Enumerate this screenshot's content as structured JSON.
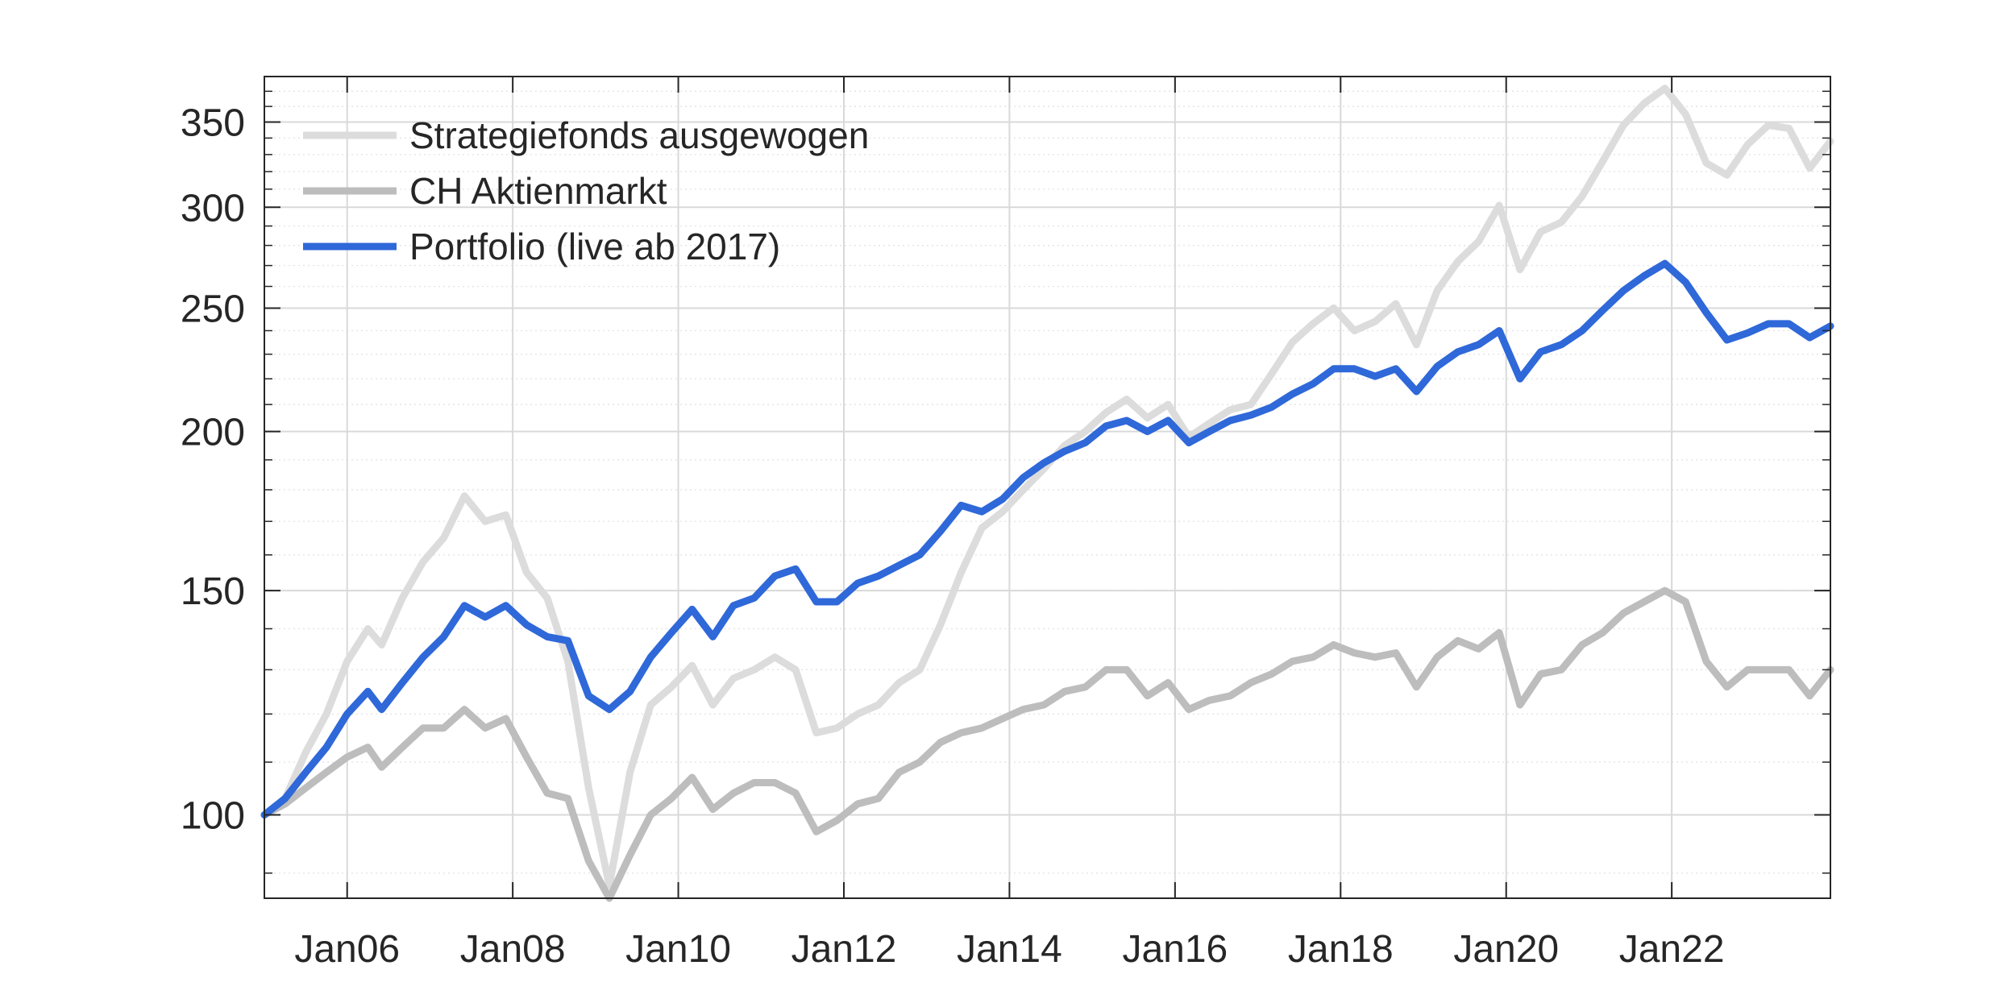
{
  "chart_data": {
    "type": "line",
    "title": "",
    "xlabel": "",
    "ylabel": "",
    "yscale": "log",
    "ylim": [
      86,
      380
    ],
    "xlim": [
      "2005-01",
      "2023-12"
    ],
    "y_ticks": [
      100,
      150,
      200,
      250,
      300,
      350
    ],
    "y_tick_labels": [
      "100",
      "150",
      "200",
      "250",
      "300",
      "350"
    ],
    "x_ticks": [
      "2006-01",
      "2008-01",
      "2010-01",
      "2012-01",
      "2014-01",
      "2016-01",
      "2018-01",
      "2020-01",
      "2022-01"
    ],
    "x_tick_labels": [
      "Jan06",
      "Jan08",
      "Jan10",
      "Jan12",
      "Jan14",
      "Jan16",
      "Jan18",
      "Jan20",
      "Jan22"
    ],
    "grid": true,
    "legend_position": "top-left",
    "series": [
      {
        "name": "Strategiefonds ausgewogen",
        "color": "#dcdcdc",
        "points": [
          [
            "2005-01",
            100
          ],
          [
            "2005-04",
            103
          ],
          [
            "2005-07",
            112
          ],
          [
            "2005-10",
            120
          ],
          [
            "2006-01",
            132
          ],
          [
            "2006-04",
            140
          ],
          [
            "2006-06",
            136
          ],
          [
            "2006-09",
            148
          ],
          [
            "2006-12",
            158
          ],
          [
            "2007-03",
            165
          ],
          [
            "2007-06",
            178
          ],
          [
            "2007-09",
            170
          ],
          [
            "2007-12",
            172
          ],
          [
            "2008-03",
            155
          ],
          [
            "2008-06",
            148
          ],
          [
            "2008-09",
            132
          ],
          [
            "2008-12",
            105
          ],
          [
            "2009-03",
            88
          ],
          [
            "2009-06",
            108
          ],
          [
            "2009-09",
            122
          ],
          [
            "2009-12",
            126
          ],
          [
            "2010-03",
            131
          ],
          [
            "2010-06",
            122
          ],
          [
            "2010-09",
            128
          ],
          [
            "2010-12",
            130
          ],
          [
            "2011-03",
            133
          ],
          [
            "2011-06",
            130
          ],
          [
            "2011-09",
            116
          ],
          [
            "2011-12",
            117
          ],
          [
            "2012-03",
            120
          ],
          [
            "2012-06",
            122
          ],
          [
            "2012-09",
            127
          ],
          [
            "2012-12",
            130
          ],
          [
            "2013-03",
            141
          ],
          [
            "2013-06",
            155
          ],
          [
            "2013-09",
            168
          ],
          [
            "2013-12",
            173
          ],
          [
            "2014-03",
            180
          ],
          [
            "2014-06",
            187
          ],
          [
            "2014-09",
            195
          ],
          [
            "2014-12",
            200
          ],
          [
            "2015-03",
            207
          ],
          [
            "2015-06",
            212
          ],
          [
            "2015-09",
            205
          ],
          [
            "2015-12",
            210
          ],
          [
            "2016-03",
            198
          ],
          [
            "2016-06",
            203
          ],
          [
            "2016-09",
            208
          ],
          [
            "2016-12",
            210
          ],
          [
            "2017-03",
            222
          ],
          [
            "2017-06",
            235
          ],
          [
            "2017-09",
            243
          ],
          [
            "2017-12",
            250
          ],
          [
            "2018-03",
            240
          ],
          [
            "2018-06",
            244
          ],
          [
            "2018-09",
            252
          ],
          [
            "2018-12",
            234
          ],
          [
            "2019-03",
            258
          ],
          [
            "2019-06",
            272
          ],
          [
            "2019-09",
            282
          ],
          [
            "2019-12",
            301
          ],
          [
            "2020-03",
            268
          ],
          [
            "2020-06",
            287
          ],
          [
            "2020-09",
            292
          ],
          [
            "2020-12",
            306
          ],
          [
            "2021-03",
            326
          ],
          [
            "2021-06",
            348
          ],
          [
            "2021-09",
            362
          ],
          [
            "2021-12",
            372
          ],
          [
            "2022-03",
            355
          ],
          [
            "2022-06",
            325
          ],
          [
            "2022-09",
            318
          ],
          [
            "2022-12",
            336
          ],
          [
            "2023-03",
            348
          ],
          [
            "2023-06",
            346
          ],
          [
            "2023-09",
            322
          ],
          [
            "2023-12",
            338
          ]
        ]
      },
      {
        "name": "CH Aktienmarkt",
        "color": "#bdbdbd",
        "points": [
          [
            "2005-01",
            100
          ],
          [
            "2005-04",
            102
          ],
          [
            "2005-07",
            105
          ],
          [
            "2005-10",
            108
          ],
          [
            "2006-01",
            111
          ],
          [
            "2006-04",
            113
          ],
          [
            "2006-06",
            109
          ],
          [
            "2006-09",
            113
          ],
          [
            "2006-12",
            117
          ],
          [
            "2007-03",
            117
          ],
          [
            "2007-06",
            121
          ],
          [
            "2007-09",
            117
          ],
          [
            "2007-12",
            119
          ],
          [
            "2008-03",
            111
          ],
          [
            "2008-06",
            104
          ],
          [
            "2008-09",
            103
          ],
          [
            "2008-12",
            92
          ],
          [
            "2009-03",
            86
          ],
          [
            "2009-06",
            93
          ],
          [
            "2009-09",
            100
          ],
          [
            "2009-12",
            103
          ],
          [
            "2010-03",
            107
          ],
          [
            "2010-06",
            101
          ],
          [
            "2010-09",
            104
          ],
          [
            "2010-12",
            106
          ],
          [
            "2011-03",
            106
          ],
          [
            "2011-06",
            104
          ],
          [
            "2011-09",
            97
          ],
          [
            "2011-12",
            99
          ],
          [
            "2012-03",
            102
          ],
          [
            "2012-06",
            103
          ],
          [
            "2012-09",
            108
          ],
          [
            "2012-12",
            110
          ],
          [
            "2013-03",
            114
          ],
          [
            "2013-06",
            116
          ],
          [
            "2013-09",
            117
          ],
          [
            "2013-12",
            119
          ],
          [
            "2014-03",
            121
          ],
          [
            "2014-06",
            122
          ],
          [
            "2014-09",
            125
          ],
          [
            "2014-12",
            126
          ],
          [
            "2015-03",
            130
          ],
          [
            "2015-06",
            130
          ],
          [
            "2015-09",
            124
          ],
          [
            "2015-12",
            127
          ],
          [
            "2016-03",
            121
          ],
          [
            "2016-06",
            123
          ],
          [
            "2016-09",
            124
          ],
          [
            "2016-12",
            127
          ],
          [
            "2017-03",
            129
          ],
          [
            "2017-06",
            132
          ],
          [
            "2017-09",
            133
          ],
          [
            "2017-12",
            136
          ],
          [
            "2018-03",
            134
          ],
          [
            "2018-06",
            133
          ],
          [
            "2018-09",
            134
          ],
          [
            "2018-12",
            126
          ],
          [
            "2019-03",
            133
          ],
          [
            "2019-06",
            137
          ],
          [
            "2019-09",
            135
          ],
          [
            "2019-12",
            139
          ],
          [
            "2020-03",
            122
          ],
          [
            "2020-06",
            129
          ],
          [
            "2020-09",
            130
          ],
          [
            "2020-12",
            136
          ],
          [
            "2021-03",
            139
          ],
          [
            "2021-06",
            144
          ],
          [
            "2021-09",
            147
          ],
          [
            "2021-12",
            150
          ],
          [
            "2022-03",
            147
          ],
          [
            "2022-06",
            132
          ],
          [
            "2022-09",
            126
          ],
          [
            "2022-12",
            130
          ],
          [
            "2023-03",
            130
          ],
          [
            "2023-06",
            130
          ],
          [
            "2023-09",
            124
          ],
          [
            "2023-12",
            130
          ]
        ]
      },
      {
        "name": "Portfolio (live ab 2017)",
        "color": "#2f68d8",
        "points": [
          [
            "2005-01",
            100
          ],
          [
            "2005-04",
            103
          ],
          [
            "2005-07",
            108
          ],
          [
            "2005-10",
            113
          ],
          [
            "2006-01",
            120
          ],
          [
            "2006-04",
            125
          ],
          [
            "2006-06",
            121
          ],
          [
            "2006-09",
            127
          ],
          [
            "2006-12",
            133
          ],
          [
            "2007-03",
            138
          ],
          [
            "2007-06",
            146
          ],
          [
            "2007-09",
            143
          ],
          [
            "2007-12",
            146
          ],
          [
            "2008-03",
            141
          ],
          [
            "2008-06",
            138
          ],
          [
            "2008-09",
            137
          ],
          [
            "2008-12",
            124
          ],
          [
            "2009-03",
            121
          ],
          [
            "2009-06",
            125
          ],
          [
            "2009-09",
            133
          ],
          [
            "2009-12",
            139
          ],
          [
            "2010-03",
            145
          ],
          [
            "2010-06",
            138
          ],
          [
            "2010-09",
            146
          ],
          [
            "2010-12",
            148
          ],
          [
            "2011-03",
            154
          ],
          [
            "2011-06",
            156
          ],
          [
            "2011-09",
            147
          ],
          [
            "2011-12",
            147
          ],
          [
            "2012-03",
            152
          ],
          [
            "2012-06",
            154
          ],
          [
            "2012-09",
            157
          ],
          [
            "2012-12",
            160
          ],
          [
            "2013-03",
            167
          ],
          [
            "2013-06",
            175
          ],
          [
            "2013-09",
            173
          ],
          [
            "2013-12",
            177
          ],
          [
            "2014-03",
            184
          ],
          [
            "2014-06",
            189
          ],
          [
            "2014-09",
            193
          ],
          [
            "2014-12",
            196
          ],
          [
            "2015-03",
            202
          ],
          [
            "2015-06",
            204
          ],
          [
            "2015-09",
            200
          ],
          [
            "2015-12",
            204
          ],
          [
            "2016-03",
            196
          ],
          [
            "2016-06",
            200
          ],
          [
            "2016-09",
            204
          ],
          [
            "2016-12",
            206
          ],
          [
            "2017-03",
            209
          ],
          [
            "2017-06",
            214
          ],
          [
            "2017-09",
            218
          ],
          [
            "2017-12",
            224
          ],
          [
            "2018-03",
            224
          ],
          [
            "2018-06",
            221
          ],
          [
            "2018-09",
            224
          ],
          [
            "2018-12",
            215
          ],
          [
            "2019-03",
            225
          ],
          [
            "2019-06",
            231
          ],
          [
            "2019-09",
            234
          ],
          [
            "2019-12",
            240
          ],
          [
            "2020-03",
            220
          ],
          [
            "2020-06",
            231
          ],
          [
            "2020-09",
            234
          ],
          [
            "2020-12",
            240
          ],
          [
            "2021-03",
            249
          ],
          [
            "2021-06",
            258
          ],
          [
            "2021-09",
            265
          ],
          [
            "2021-12",
            271
          ],
          [
            "2022-03",
            262
          ],
          [
            "2022-06",
            248
          ],
          [
            "2022-09",
            236
          ],
          [
            "2022-12",
            239
          ],
          [
            "2023-03",
            243
          ],
          [
            "2023-06",
            243
          ],
          [
            "2023-09",
            237
          ],
          [
            "2023-12",
            242
          ]
        ]
      }
    ]
  }
}
